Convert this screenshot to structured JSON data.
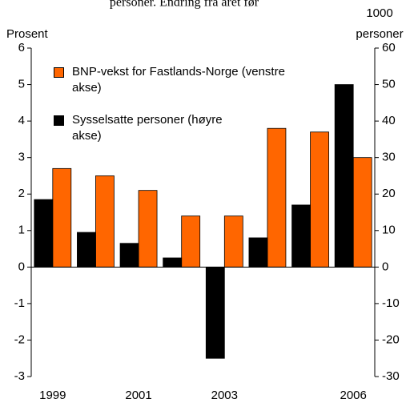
{
  "chart_data": {
    "type": "bar",
    "title": "personer. Endring fra året før",
    "ylabel": "Prosent",
    "y2label": [
      "1000",
      "personer"
    ],
    "categories": [
      "1999",
      null,
      "2001",
      null,
      "2003",
      null,
      null,
      "2006"
    ],
    "series": [
      {
        "name": "BNP-vekst for Fastlands-Norge (venstre akse)",
        "color": "#ff6600",
        "values": [
          2.7,
          2.5,
          2.1,
          1.4,
          1.4,
          3.8,
          3.7,
          3.0
        ]
      },
      {
        "name": "Sysselsatte personer (høyre akse)",
        "color": "#000000",
        "axis": "y2",
        "values": [
          18.5,
          9.5,
          6.5,
          2.5,
          -25,
          8,
          17,
          50
        ]
      }
    ],
    "ylim": [
      -3,
      6
    ],
    "yticks": [
      -3,
      -2,
      -1,
      0,
      1,
      2,
      3,
      4,
      5,
      6
    ],
    "y2lim": [
      -30,
      60
    ],
    "y2ticks": [
      -30,
      -20,
      -10,
      0,
      10,
      20,
      30,
      40,
      50,
      60
    ],
    "legend": "upper left",
    "grid": false
  }
}
